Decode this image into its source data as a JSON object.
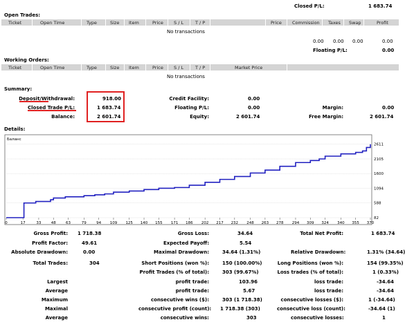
{
  "top": {
    "closed_pl_label": "Closed P/L:",
    "closed_pl_value": "1 683.74"
  },
  "open_trades": {
    "title": "Open Trades:",
    "headers": [
      "Ticket",
      "Open Time",
      "Type",
      "Size",
      "Item",
      "Price",
      "S / L",
      "T / P",
      "",
      "Price",
      "Commission",
      "Taxes",
      "Swap",
      "Profit"
    ],
    "empty": "No transactions",
    "totals": [
      "0.00",
      "0.00",
      "0.00",
      "0.00"
    ],
    "floating_label": "Floating P/L:",
    "floating_value": "0.00"
  },
  "working_orders": {
    "title": "Working Orders:",
    "headers": [
      "Ticket",
      "Open Time",
      "Type",
      "Size",
      "Item",
      "Price",
      "S / L",
      "T / P",
      "Market Price"
    ],
    "empty": "No transactions"
  },
  "summary": {
    "title": "Summary:",
    "deposit_label": "Deposit/Withdrawal:",
    "deposit_value": "918.00",
    "closed_label": "Closed Trade P/L:",
    "closed_value": "1 683.74",
    "balance_label": "Balance:",
    "balance_value": "2 601.74",
    "credit_label": "Credit Facility:",
    "credit_value": "0.00",
    "floating_label": "Floating P/L:",
    "floating_value": "0.00",
    "equity_label": "Equity:",
    "equity_value": "2 601.74",
    "margin_label": "Margin:",
    "margin_value": "0.00",
    "free_margin_label": "Free Margin:",
    "free_margin_value": "2 601.74"
  },
  "details": {
    "title": "Details:"
  },
  "chart_data": {
    "type": "line",
    "title": "Баланс",
    "x_ticks": [
      0,
      17,
      33,
      48,
      63,
      79,
      94,
      109,
      125,
      140,
      155,
      171,
      186,
      202,
      217,
      232,
      248,
      263,
      278,
      294,
      309,
      324,
      340,
      355,
      370
    ],
    "y_ticks": [
      82,
      588,
      1094,
      1600,
      2105,
      2611
    ],
    "xlim": [
      0,
      370
    ],
    "ylim": [
      82,
      2700
    ],
    "series": [
      {
        "color": "#2020c0",
        "x": [
          0,
          17,
          18,
          30,
          45,
          48,
          60,
          79,
          90,
          100,
          109,
          125,
          140,
          155,
          171,
          186,
          202,
          217,
          232,
          248,
          263,
          278,
          294,
          309,
          318,
          324,
          340,
          355,
          362,
          366,
          370
        ],
        "y": [
          82,
          82,
          588,
          640,
          700,
          760,
          800,
          840,
          870,
          900,
          960,
          1000,
          1050,
          1094,
          1120,
          1200,
          1300,
          1400,
          1500,
          1620,
          1720,
          1850,
          1980,
          2050,
          2105,
          2200,
          2280,
          2330,
          2380,
          2500,
          2611
        ]
      }
    ]
  },
  "stats": {
    "gross_profit_label": "Gross Profit:",
    "gross_profit": "1 718.38",
    "gross_loss_label": "Gross Loss:",
    "gross_loss": "34.64",
    "total_net_label": "Total Net Profit:",
    "total_net": "1 683.74",
    "profit_factor_label": "Profit Factor:",
    "profit_factor": "49.61",
    "expected_payoff_label": "Expected Payoff:",
    "expected_payoff": "5.54",
    "abs_dd_label": "Absolute Drawdown:",
    "abs_dd": "0.00",
    "max_dd_label": "Maximal Drawdown:",
    "max_dd": "34.64 (1.31%)",
    "rel_dd_label": "Relative Drawdown:",
    "rel_dd": "1.31% (34.64)",
    "total_trades_label": "Total Trades:",
    "total_trades": "304",
    "short_label": "Short Positions (won %):",
    "short": "150 (100.00%)",
    "long_label": "Long Positions (won %):",
    "long": "154 (99.35%)",
    "profit_trades_label": "Profit Trades (% of total):",
    "profit_trades": "303 (99.67%)",
    "loss_trades_label": "Loss trades (% of total):",
    "loss_trades": "1 (0.33%)",
    "largest_label": "Largest",
    "largest_profit_label": "profit trade:",
    "largest_profit": "103.96",
    "largest_loss_label": "loss trade:",
    "largest_loss": "-34.64",
    "average_label": "Average",
    "avg_profit_label": "profit trade:",
    "avg_profit": "5.67",
    "avg_loss_label": "loss trade:",
    "avg_loss": "-34.64",
    "maximum_label": "Maximum",
    "max_wins_label": "consecutive wins ($):",
    "max_wins": "303 (1 718.38)",
    "max_losses_label": "consecutive losses ($):",
    "max_losses": "1 (-34.64)",
    "maximal_label": "Maximal",
    "maximal_profit_label": "consecutive profit (count):",
    "maximal_profit": "1 718.38 (303)",
    "maximal_loss_label": "consecutive loss (count):",
    "maximal_loss": "-34.64 (1)",
    "average2_label": "Average",
    "avg_wins_label": "consecutive wins:",
    "avg_wins": "303",
    "avg_losses_label": "consecutive losses:",
    "avg_losses": "1"
  }
}
